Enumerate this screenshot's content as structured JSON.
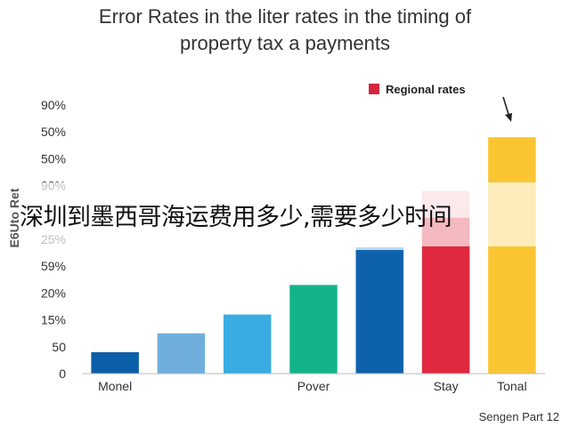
{
  "chart_data": {
    "type": "bar",
    "title_lines": [
      "Error Rates in the liter rates in the timing of",
      "property tax a payments"
    ],
    "categories": [
      "Monel",
      "",
      "",
      "Pover",
      "",
      "Stay",
      "Tonal"
    ],
    "values": [
      8,
      15,
      22,
      33,
      46,
      58,
      88
    ],
    "faded_values": [
      null,
      null,
      null,
      null,
      47,
      68,
      null
    ],
    "colors": [
      "#0B5EA8",
      "#6FAEDC",
      "#3AACE1",
      "#14B48B",
      "#0E62AC",
      "#E0283E",
      "#FBC531"
    ],
    "faded_colors": [
      null,
      null,
      null,
      null,
      "#B9D8F0",
      "#F2BCC3",
      null
    ],
    "ytick_labels": [
      "0",
      "50",
      "15%",
      "20%",
      "59%",
      "25%",
      "",
      "90%",
      "50%",
      "50%",
      "90%"
    ],
    "ylim": [
      0,
      100
    ],
    "legend": {
      "label": "Regional rates",
      "color": "#D4263C",
      "position": "top-right"
    },
    "side_label": "E6Uto Ret",
    "footer": "Sengen Part 12",
    "overlay_text": "深圳到墨西哥海运费用多少,需要多少时间",
    "grid": false
  }
}
